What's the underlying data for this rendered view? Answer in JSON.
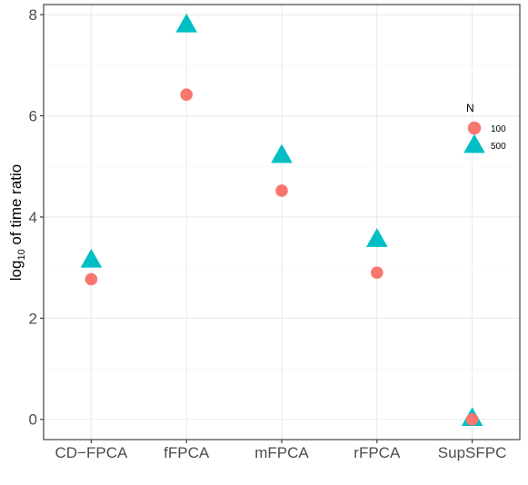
{
  "chart_data": {
    "type": "scatter",
    "ylabel": {
      "base": "log",
      "sub": "10",
      "rest": " of time ratio"
    },
    "xlabel": "",
    "categories": [
      "CD−FPCA",
      "fFPCA",
      "mFPCA",
      "rFPCA",
      "SupSFPC"
    ],
    "ylim": [
      -0.4,
      8.2
    ],
    "yticks": [
      0,
      2,
      4,
      6,
      8
    ],
    "grid": true,
    "legend": {
      "title": "N",
      "position": "right"
    },
    "series": [
      {
        "name": "100",
        "shape": "circle",
        "color": "#F8766D",
        "values": [
          2.77,
          6.42,
          4.52,
          2.9,
          0.0
        ]
      },
      {
        "name": "500",
        "shape": "triangle",
        "color": "#00BFC4",
        "values": [
          3.15,
          7.8,
          5.22,
          3.56,
          0.02
        ]
      }
    ]
  }
}
